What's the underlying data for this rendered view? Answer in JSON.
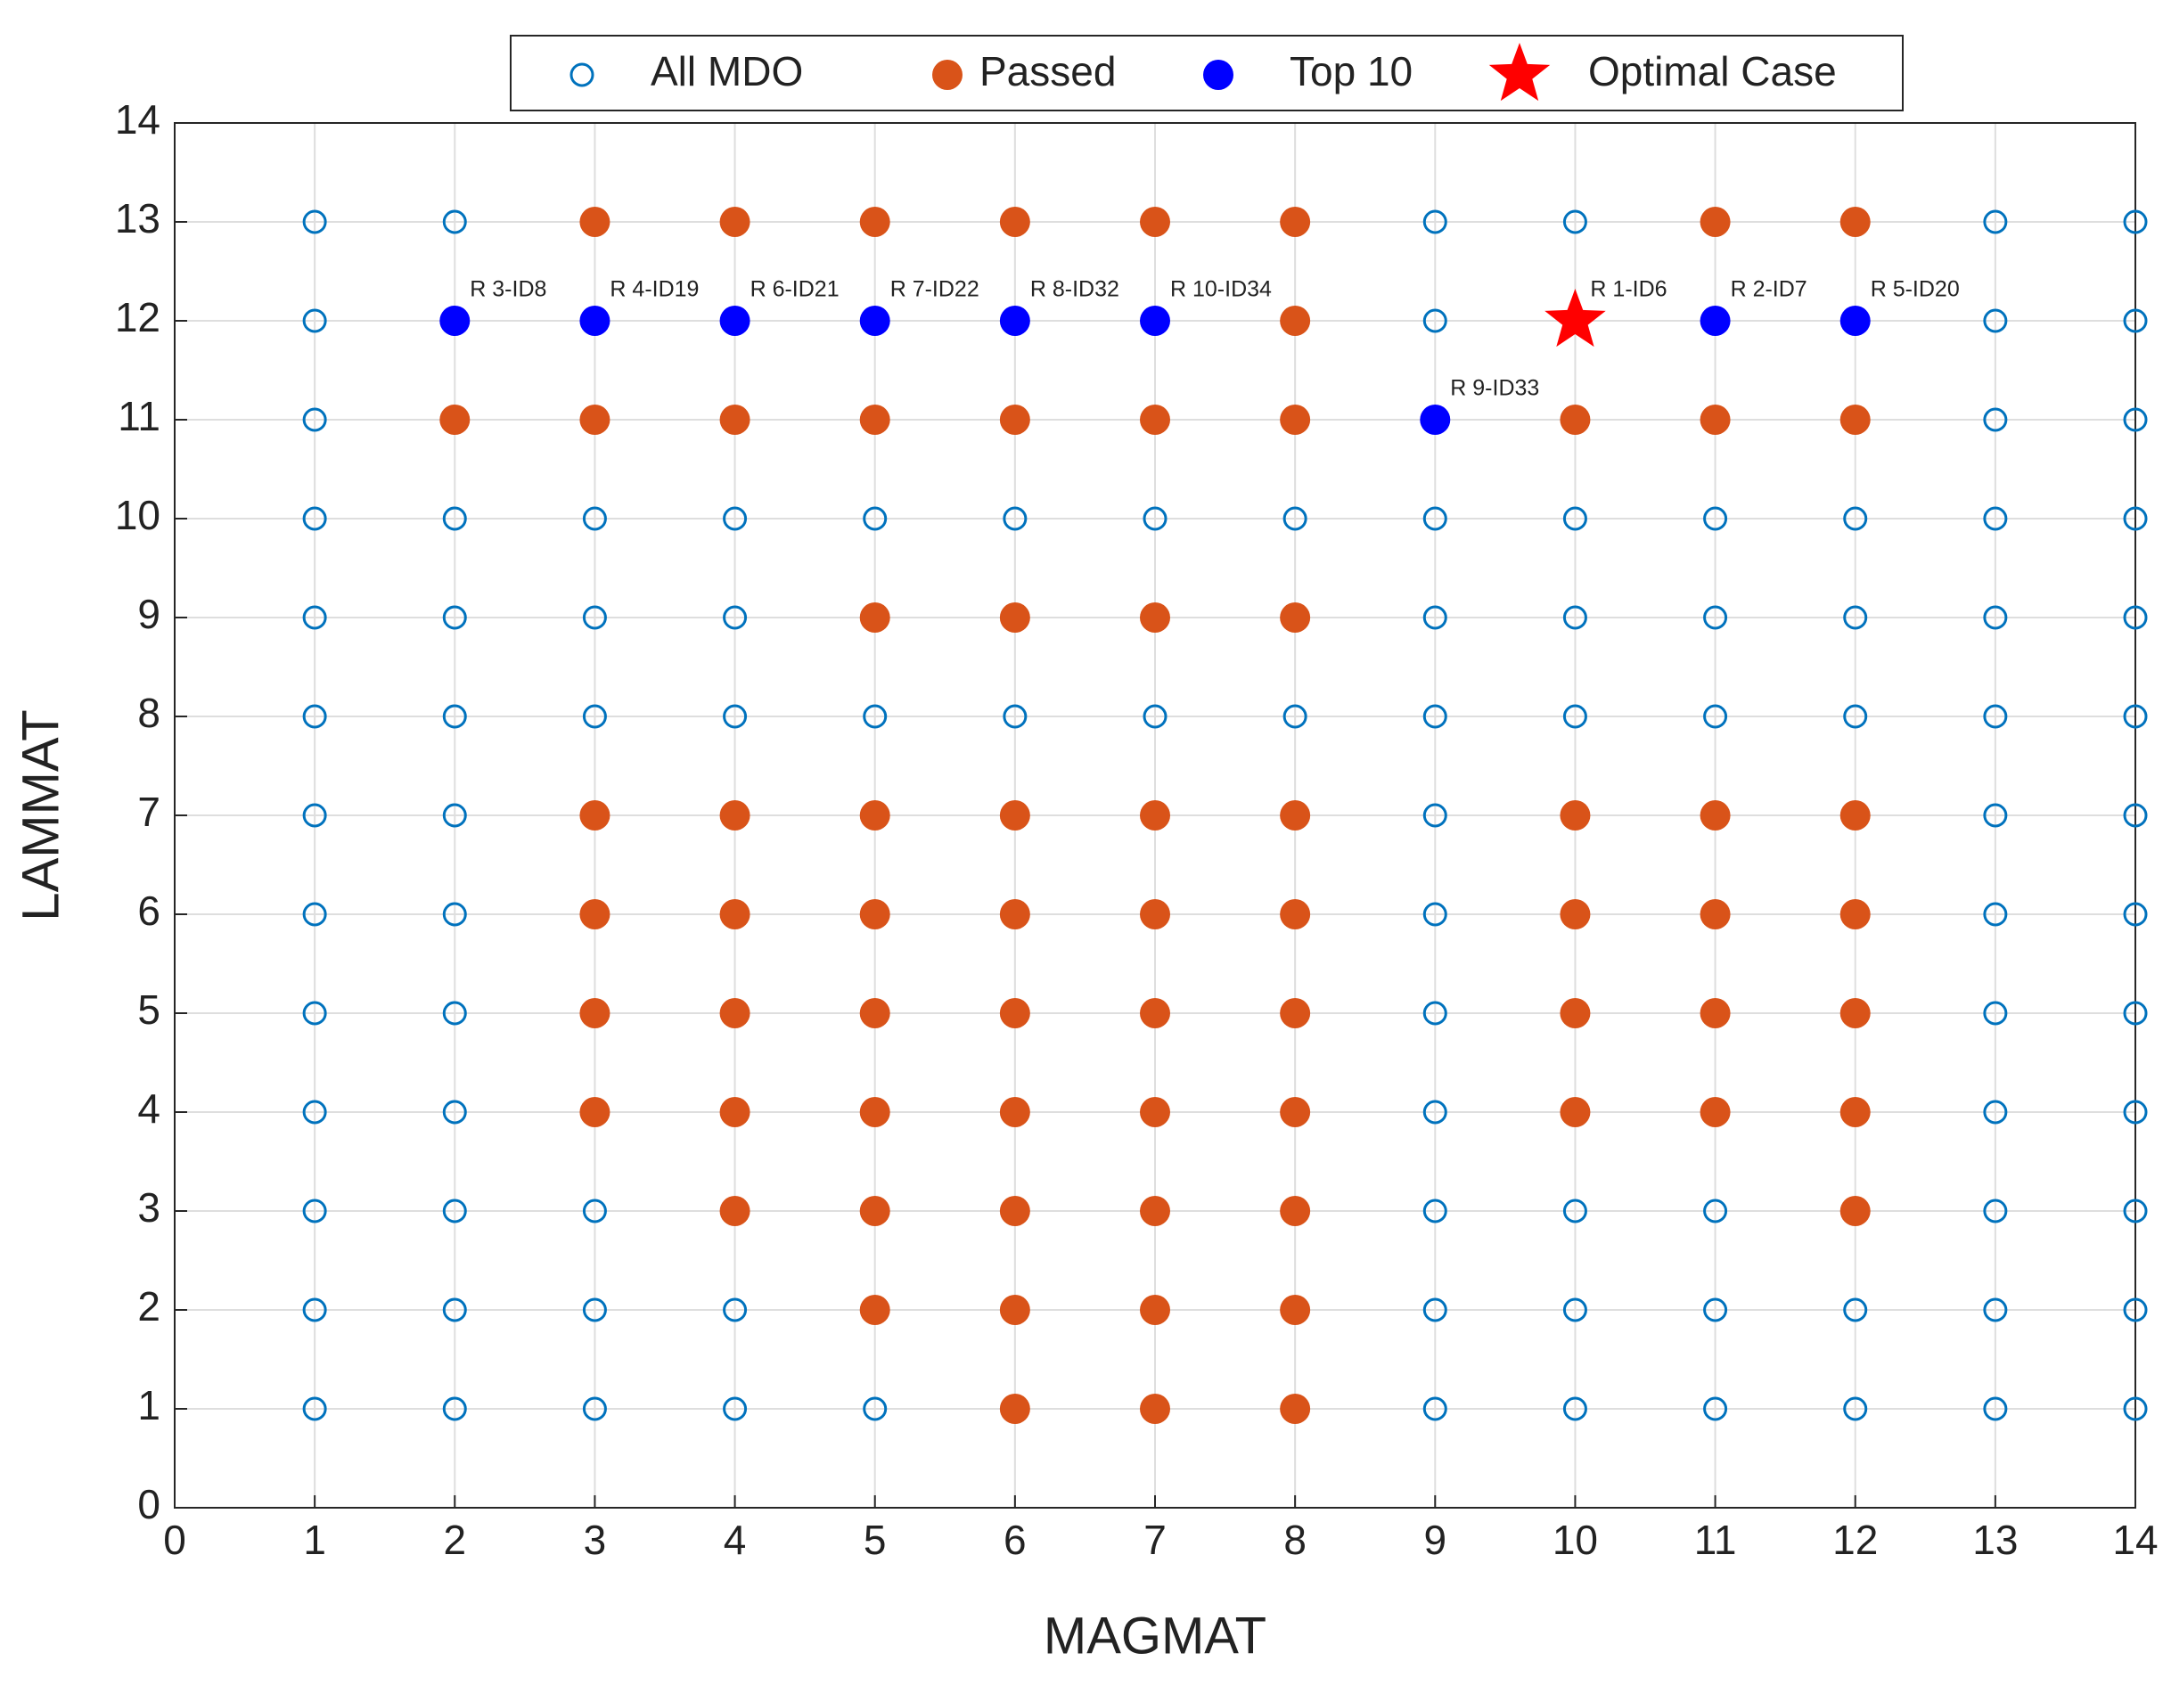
{
  "chart_data": {
    "type": "scatter",
    "x_label": "MAGMAT",
    "y_label": "LAMMAT",
    "xlim": [
      0,
      14
    ],
    "ylim": [
      0,
      14
    ],
    "xticks": [
      0,
      1,
      2,
      3,
      4,
      5,
      6,
      7,
      8,
      9,
      10,
      11,
      12,
      13,
      14
    ],
    "yticks": [
      0,
      1,
      2,
      3,
      4,
      5,
      6,
      7,
      8,
      9,
      10,
      11,
      12,
      13,
      14
    ],
    "grid": true,
    "legend": "top",
    "series": [
      {
        "name": "All MDO",
        "color": "#0072BD",
        "marker": "open-circle",
        "x": [
          1,
          2,
          3,
          4,
          5,
          6,
          7,
          8,
          9,
          10,
          11,
          12,
          13,
          14,
          1,
          2,
          3,
          4,
          5,
          6,
          7,
          8,
          9,
          10,
          11,
          12,
          13,
          14,
          1,
          2,
          3,
          4,
          5,
          6,
          7,
          8,
          9,
          10,
          11,
          12,
          13,
          14,
          1,
          2,
          3,
          4,
          5,
          6,
          7,
          8,
          9,
          10,
          11,
          12,
          13,
          14,
          1,
          2,
          3,
          4,
          5,
          6,
          7,
          8,
          9,
          10,
          11,
          12,
          13,
          14,
          1,
          2,
          3,
          4,
          5,
          6,
          7,
          8,
          9,
          10,
          11,
          12,
          13,
          14,
          1,
          2,
          3,
          4,
          5,
          6,
          7,
          8,
          9,
          10,
          11,
          12,
          13,
          14,
          1,
          2,
          3,
          4,
          5,
          6,
          7,
          8,
          9,
          10,
          11,
          12,
          13,
          14,
          1,
          2,
          3,
          4,
          5,
          6,
          7,
          8,
          9,
          10,
          11,
          12,
          13,
          14,
          1,
          2,
          3,
          4,
          5,
          6,
          7,
          8,
          9,
          10,
          11,
          12,
          13,
          14,
          1,
          2,
          3,
          4,
          5,
          6,
          7,
          8,
          9,
          10,
          11,
          12,
          13,
          14,
          1,
          2,
          3,
          4,
          5,
          6,
          7,
          8,
          9,
          10,
          11,
          12,
          13,
          14,
          1,
          2,
          3,
          4,
          5,
          6,
          7,
          8,
          9,
          10,
          11,
          12,
          13,
          14
        ],
        "y": [
          1,
          1,
          1,
          1,
          1,
          1,
          1,
          1,
          1,
          1,
          1,
          1,
          1,
          1,
          2,
          2,
          2,
          2,
          2,
          2,
          2,
          2,
          2,
          2,
          2,
          2,
          2,
          2,
          3,
          3,
          3,
          3,
          3,
          3,
          3,
          3,
          3,
          3,
          3,
          3,
          3,
          3,
          4,
          4,
          4,
          4,
          4,
          4,
          4,
          4,
          4,
          4,
          4,
          4,
          4,
          4,
          5,
          5,
          5,
          5,
          5,
          5,
          5,
          5,
          5,
          5,
          5,
          5,
          5,
          5,
          6,
          6,
          6,
          6,
          6,
          6,
          6,
          6,
          6,
          6,
          6,
          6,
          6,
          6,
          7,
          7,
          7,
          7,
          7,
          7,
          7,
          7,
          7,
          7,
          7,
          7,
          7,
          7,
          8,
          8,
          8,
          8,
          8,
          8,
          8,
          8,
          8,
          8,
          8,
          8,
          8,
          8,
          9,
          9,
          9,
          9,
          9,
          9,
          9,
          9,
          9,
          9,
          9,
          9,
          9,
          9,
          10,
          10,
          10,
          10,
          10,
          10,
          10,
          10,
          10,
          10,
          10,
          10,
          10,
          10,
          11,
          11,
          11,
          11,
          11,
          11,
          11,
          11,
          11,
          11,
          11,
          11,
          11,
          11,
          12,
          12,
          12,
          12,
          12,
          12,
          12,
          12,
          12,
          12,
          12,
          12,
          12,
          12,
          13,
          13,
          13,
          13,
          13,
          13,
          13,
          13,
          13,
          13,
          13,
          13,
          13,
          13
        ]
      },
      {
        "name": "Passed",
        "color": "#D95319",
        "marker": "circle",
        "x": [
          3,
          4,
          5,
          6,
          7,
          8,
          11,
          12,
          8,
          2,
          3,
          4,
          5,
          6,
          7,
          8,
          10,
          11,
          12,
          5,
          6,
          7,
          8,
          3,
          4,
          5,
          6,
          7,
          8,
          10,
          11,
          12,
          3,
          4,
          5,
          6,
          7,
          8,
          10,
          11,
          12,
          3,
          4,
          5,
          6,
          7,
          8,
          10,
          11,
          12,
          3,
          4,
          5,
          6,
          7,
          8,
          10,
          11,
          12,
          4,
          5,
          6,
          7,
          8,
          12,
          5,
          6,
          7,
          8,
          6,
          7,
          8
        ],
        "y": [
          13,
          13,
          13,
          13,
          13,
          13,
          13,
          13,
          12,
          11,
          11,
          11,
          11,
          11,
          11,
          11,
          11,
          11,
          11,
          9,
          9,
          9,
          9,
          7,
          7,
          7,
          7,
          7,
          7,
          7,
          7,
          7,
          6,
          6,
          6,
          6,
          6,
          6,
          6,
          6,
          6,
          5,
          5,
          5,
          5,
          5,
          5,
          5,
          5,
          5,
          4,
          4,
          4,
          4,
          4,
          4,
          4,
          4,
          4,
          3,
          3,
          3,
          3,
          3,
          3,
          2,
          2,
          2,
          2,
          1,
          1,
          1
        ]
      },
      {
        "name": "Top 10",
        "color": "#0000FF",
        "marker": "circle",
        "x": [
          2,
          3,
          4,
          5,
          6,
          7,
          11,
          12,
          9
        ],
        "y": [
          12,
          12,
          12,
          12,
          12,
          12,
          12,
          12,
          11
        ]
      },
      {
        "name": "Optimal Case",
        "color": "#FF0000",
        "marker": "star",
        "x": [
          10
        ],
        "y": [
          12
        ]
      }
    ],
    "annotations": [
      {
        "text": "R 3-ID8",
        "x": 2,
        "y": 12
      },
      {
        "text": "R 4-ID19",
        "x": 3,
        "y": 12
      },
      {
        "text": "R 6-ID21",
        "x": 4,
        "y": 12
      },
      {
        "text": "R 7-ID22",
        "x": 5,
        "y": 12
      },
      {
        "text": "R 8-ID32",
        "x": 6,
        "y": 12
      },
      {
        "text": "R 10-ID34",
        "x": 7,
        "y": 12
      },
      {
        "text": "R 1-ID6",
        "x": 10,
        "y": 12
      },
      {
        "text": "R 2-ID7",
        "x": 11,
        "y": 12
      },
      {
        "text": "R 5-ID20",
        "x": 12,
        "y": 12
      },
      {
        "text": "R 9-ID33",
        "x": 9,
        "y": 11
      }
    ]
  }
}
